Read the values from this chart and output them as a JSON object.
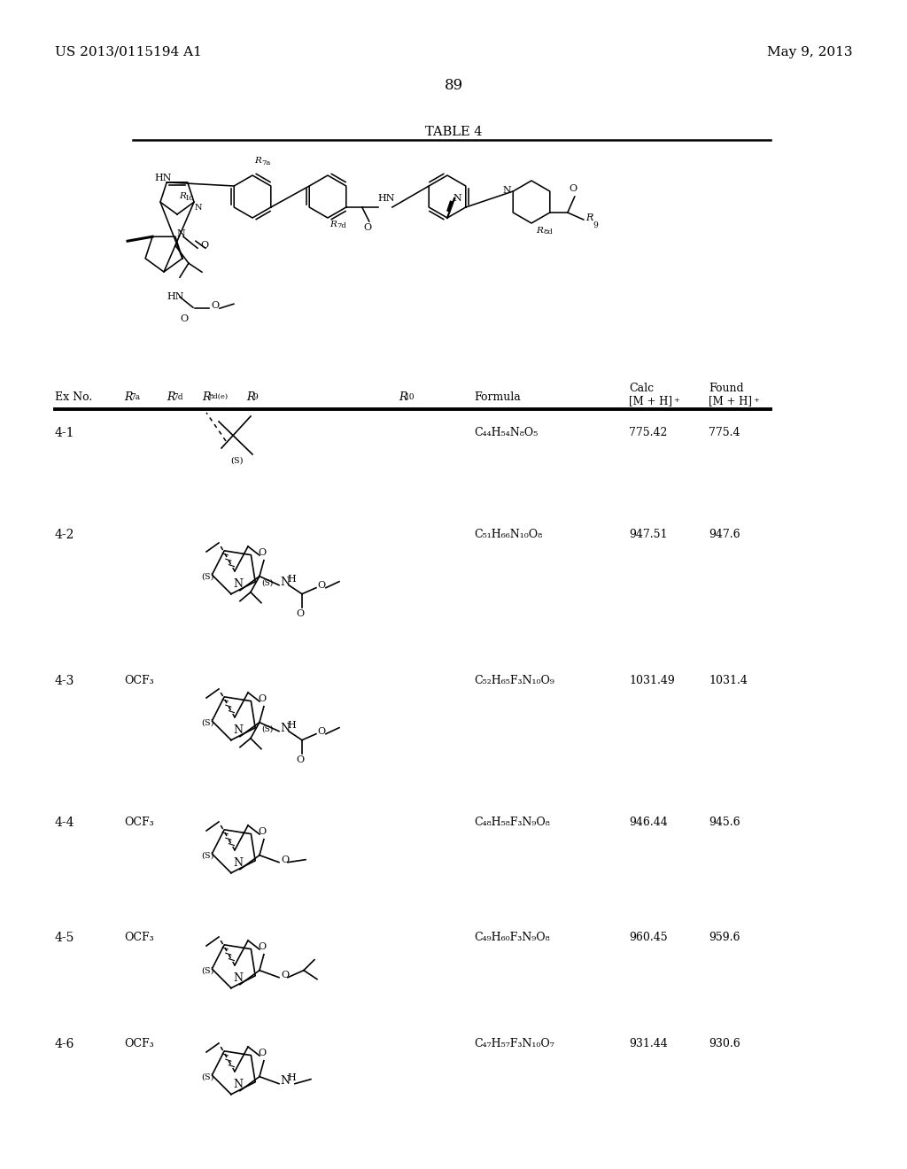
{
  "bg_color": "#ffffff",
  "title_left": "US 2013/0115194 A1",
  "title_right": "May 9, 2013",
  "page_number": "89",
  "table_title": "TABLE 4",
  "rows": [
    {
      "ex": "4-1",
      "r7a": "",
      "formula": "C44H54N8O5",
      "calc": "775.42",
      "found": "775.4"
    },
    {
      "ex": "4-2",
      "r7a": "",
      "formula": "C51H66N10O8",
      "calc": "947.51",
      "found": "947.6"
    },
    {
      "ex": "4-3",
      "r7a": "OCF3",
      "formula": "C52H65F3N10O9",
      "calc": "1031.49",
      "found": "1031.4"
    },
    {
      "ex": "4-4",
      "r7a": "OCF3",
      "formula": "C48H58F3N9O8",
      "calc": "946.44",
      "found": "945.6"
    },
    {
      "ex": "4-5",
      "r7a": "OCF3",
      "formula": "C49H60F3N9O8",
      "calc": "960.45",
      "found": "959.6"
    },
    {
      "ex": "4-6",
      "r7a": "OCF3",
      "formula": "C47H57F3N10O7",
      "calc": "931.44",
      "found": "930.6"
    }
  ]
}
